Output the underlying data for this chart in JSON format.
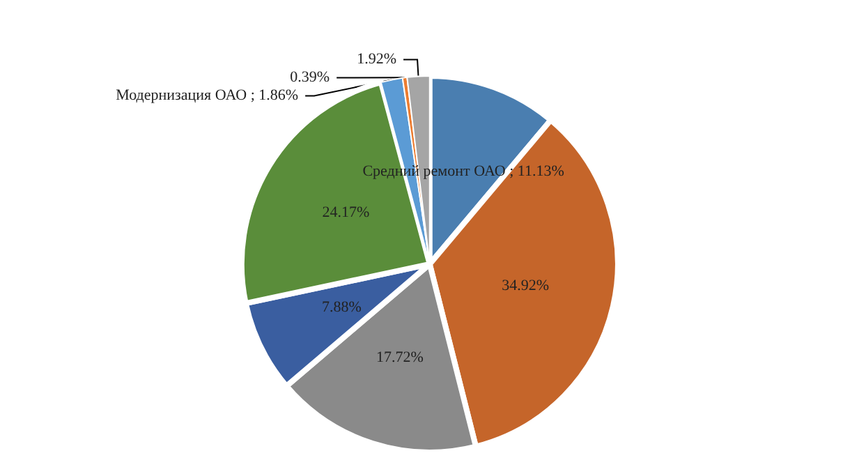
{
  "chart_data": {
    "type": "pie",
    "categories": [
      "Средний ремонт ОАО",
      null,
      null,
      null,
      null,
      "Модернизация ОАО",
      null,
      null
    ],
    "values": [
      11.13,
      34.92,
      17.72,
      7.88,
      24.17,
      1.86,
      0.39,
      1.92
    ],
    "colors": [
      "#4a7eb0",
      "#c5652a",
      "#8a8a8a",
      "#3a5ea0",
      "#5a8d3a",
      "#5b9bd5",
      "#ed7d31",
      "#a5a5a5"
    ],
    "value_labels": [
      "11.13%",
      "34.92%",
      "17.72%",
      "7.88%",
      "24.17%",
      "1.86%",
      "0.39%",
      "1.92%"
    ]
  }
}
